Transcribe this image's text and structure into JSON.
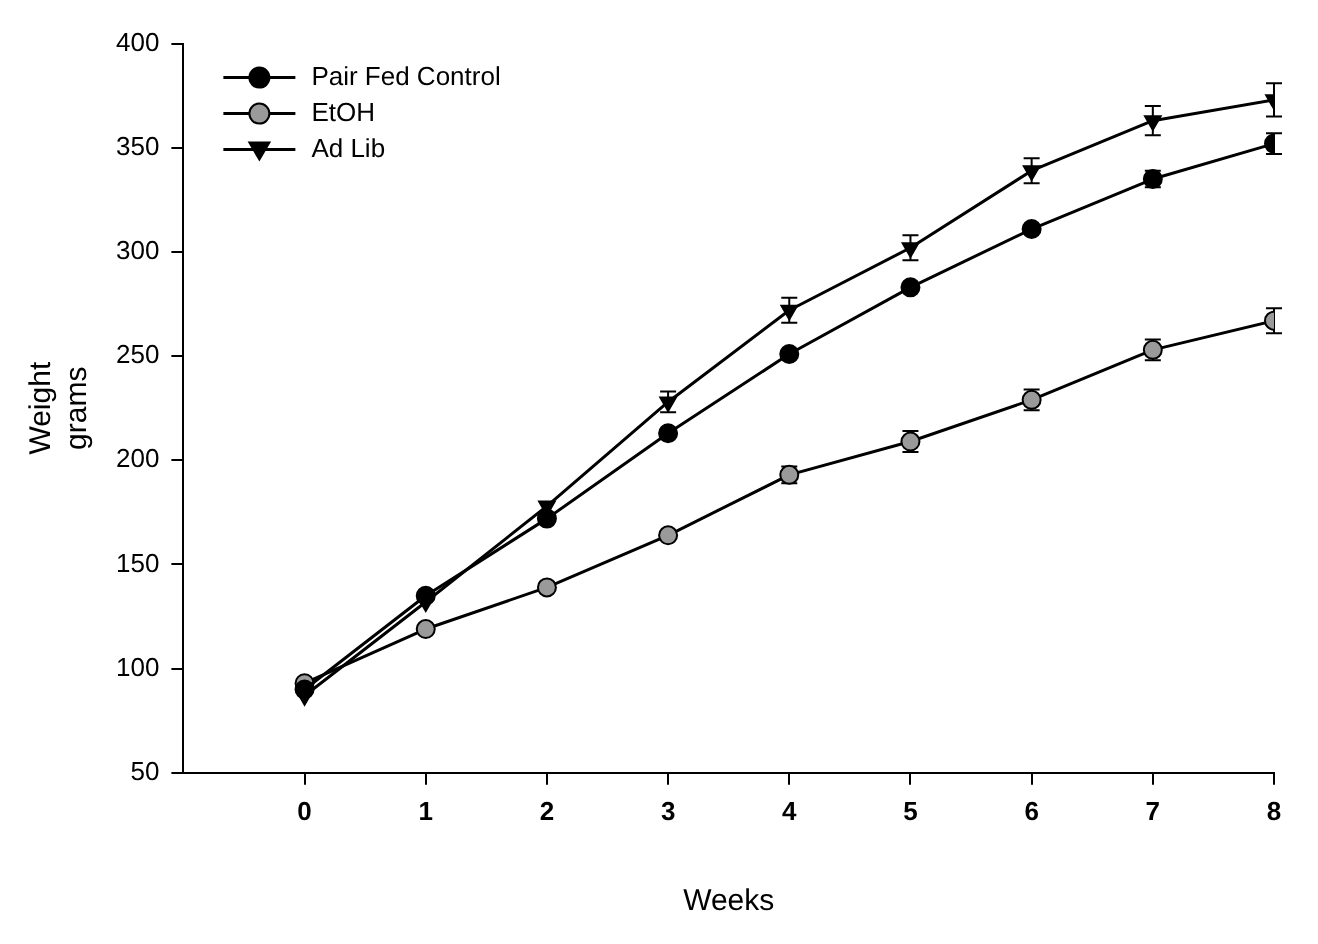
{
  "chart_data": {
    "type": "line",
    "xlabel": "Weeks",
    "ylabel": "Weight\ngrams",
    "x": [
      0,
      1,
      2,
      3,
      4,
      5,
      6,
      7,
      8
    ],
    "xlim": [
      -1,
      8
    ],
    "xticks": [
      0,
      1,
      2,
      3,
      4,
      5,
      6,
      7,
      8
    ],
    "ylim": [
      50,
      400
    ],
    "yticks": [
      50,
      100,
      150,
      200,
      250,
      300,
      350,
      400
    ],
    "grid": false,
    "legend": "top left",
    "line_style": "solid",
    "series": [
      {
        "name": "Pair Fed Control",
        "color": "#000000",
        "marker": "circle",
        "values": [
          90,
          135,
          172,
          213,
          251,
          283,
          311,
          335,
          352
        ],
        "errors": [
          null,
          null,
          null,
          null,
          null,
          null,
          null,
          4,
          5
        ]
      },
      {
        "name": "EtOH",
        "color": "#9a9a9a",
        "marker": "circle",
        "values": [
          93,
          119,
          139,
          164,
          193,
          209,
          229,
          253,
          267
        ],
        "errors": [
          null,
          null,
          null,
          null,
          4,
          5,
          5,
          5,
          6
        ]
      },
      {
        "name": "Ad Lib",
        "color": "#000000",
        "marker": "triangle",
        "values": [
          87,
          132,
          178,
          228,
          272,
          302,
          339,
          363,
          373
        ],
        "errors": [
          null,
          null,
          null,
          5,
          6,
          6,
          6,
          7,
          8
        ]
      }
    ]
  }
}
